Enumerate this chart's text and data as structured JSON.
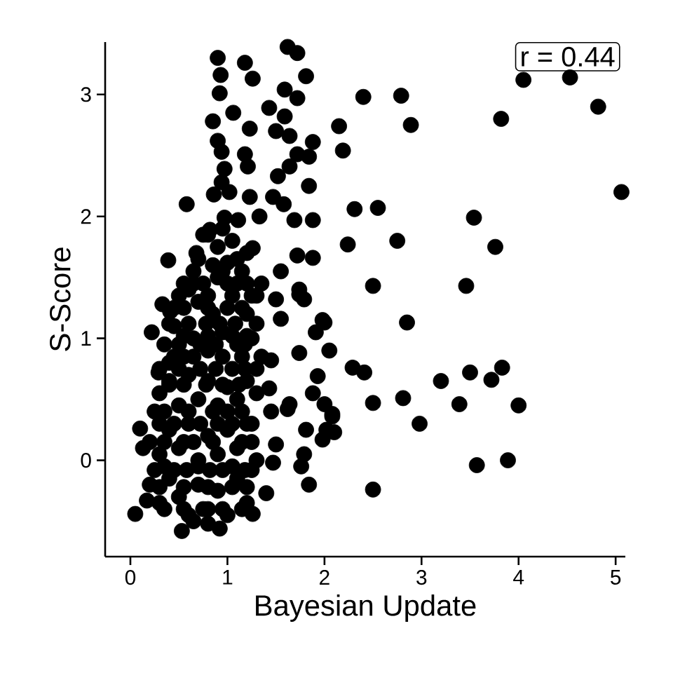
{
  "chart_data": {
    "type": "scatter",
    "xlabel": "Bayesian Update",
    "ylabel": "S-Score",
    "annotations": [
      "r = 0.44"
    ],
    "marker": "circle",
    "color": "#000000",
    "xlim": [
      -0.26,
      5.1
    ],
    "ylim": [
      -0.79,
      3.43
    ],
    "xticks": [
      0,
      1,
      2,
      3,
      4,
      5
    ],
    "yticks": [
      0,
      1,
      2,
      3
    ],
    "x": [
      4.05,
      4.53,
      4.82,
      3.82,
      5.06,
      2.4,
      2.79,
      2.15,
      2.89,
      2.19,
      2.31,
      2.55,
      3.54,
      2.24,
      2.75,
      3.76,
      2.5,
      3.46,
      2.85,
      2.29,
      2.41,
      3.2,
      3.5,
      3.72,
      3.83,
      2.5,
      2.81,
      3.39,
      4.0,
      2.98,
      3.57,
      3.89,
      2.5,
      2.05,
      2.08,
      2.02,
      0.9,
      1.18,
      1.62,
      1.72,
      1.81,
      0.93,
      0.92,
      1.26,
      1.59,
      1.72,
      0.85,
      1.06,
      1.23,
      1.43,
      1.59,
      1.5,
      0.9,
      0.94,
      1.18,
      1.64,
      1.88,
      1.72,
      1.84,
      0.97,
      1.21,
      1.64,
      1.52,
      0.94,
      1.84,
      0.86,
      1.02,
      1.23,
      1.47,
      0.58,
      1.58,
      0.97,
      1.33,
      1.11,
      1.69,
      1.88,
      0.82,
      0.68,
      0.39,
      1.72,
      1.88,
      1.55,
      1.74,
      1.79,
      0.41,
      1.98,
      0.65,
      1.26,
      0.22,
      0.33,
      0.29,
      0.1,
      0.13,
      0.05,
      0.17,
      0.53,
      0.92,
      1.26,
      1.4,
      1.74,
      1.5,
      1.55,
      1.74,
      1.91,
      2.0,
      1.93,
      1.88,
      2.0,
      2.08,
      1.64,
      1.62,
      1.81,
      2.1,
      1.98,
      1.79,
      1.76,
      1.84,
      1.5,
      1.47,
      1.45,
      1.43,
      1.45,
      0.75,
      0.9,
      1.05,
      1.2,
      0.85,
      1.0,
      0.6,
      0.75,
      0.9,
      1.1,
      1.3,
      0.55,
      0.7,
      0.85,
      1.0,
      1.2,
      1.35,
      0.35,
      0.45,
      0.55,
      0.65,
      0.8,
      0.95,
      1.1,
      1.25,
      1.35,
      0.4,
      0.3,
      0.4,
      0.5,
      0.6,
      0.7,
      0.8,
      0.9,
      1.0,
      1.1,
      1.2,
      1.3,
      0.25,
      0.2,
      0.3,
      0.4,
      0.5,
      0.6,
      0.7,
      0.8,
      0.9,
      1.0,
      1.1,
      1.2,
      1.3,
      0.2,
      0.3,
      0.4,
      0.5,
      0.6,
      0.7,
      0.8,
      0.9,
      1.0,
      1.1,
      1.2,
      0.65,
      0.8,
      0.65,
      0.95,
      1.15,
      0.5,
      0.8,
      1.05,
      1.25,
      0.4,
      0.6,
      0.78,
      0.92,
      1.08,
      1.3,
      0.3,
      0.5,
      0.72,
      0.88,
      1.05,
      1.18,
      1.3,
      0.3,
      0.45,
      0.72,
      0.9,
      1.05,
      1.25,
      0.25,
      0.45,
      0.58,
      0.82,
      0.95,
      1.18,
      1.25,
      0.5,
      0.72,
      0.88,
      1.18,
      0.35,
      0.55,
      0.75,
      0.95,
      1.15,
      0.8,
      0.95,
      0.7,
      1.1,
      0.55,
      1.0,
      1.2,
      0.45,
      0.8,
      1.15,
      0.55,
      0.8,
      1.05,
      1.2,
      0.45,
      0.65,
      0.95,
      1.15,
      0.4,
      0.55,
      0.78,
      0.95,
      1.12,
      0.35,
      0.6,
      0.85,
      1.0,
      1.15,
      0.35,
      0.55,
      0.65,
      0.85,
      1.15,
      1.25,
      0.3,
      0.55,
      0.8,
      1.05,
      1.2,
      0.35,
      0.7,
      1.05
    ],
    "values": [
      3.12,
      3.14,
      2.9,
      2.8,
      2.2,
      2.98,
      2.99,
      2.74,
      2.75,
      2.54,
      2.06,
      2.07,
      1.99,
      1.77,
      1.8,
      1.75,
      1.43,
      1.43,
      1.13,
      0.76,
      0.72,
      0.65,
      0.72,
      0.66,
      0.76,
      0.47,
      0.51,
      0.46,
      0.45,
      0.3,
      -0.04,
      0.0,
      -0.24,
      0.9,
      0.38,
      0.25,
      3.3,
      3.26,
      3.39,
      3.34,
      3.15,
      3.16,
      3.01,
      3.13,
      3.04,
      2.97,
      2.78,
      2.85,
      2.72,
      2.89,
      2.82,
      2.7,
      2.62,
      2.53,
      2.51,
      2.66,
      2.61,
      2.51,
      2.49,
      2.39,
      2.41,
      2.41,
      2.33,
      2.28,
      2.25,
      2.18,
      2.2,
      2.16,
      2.16,
      2.1,
      2.1,
      1.99,
      2.0,
      1.97,
      1.97,
      1.97,
      1.89,
      1.7,
      1.64,
      1.68,
      1.66,
      1.55,
      1.4,
      1.32,
      1.22,
      1.15,
      1.45,
      1.74,
      1.05,
      1.28,
      0.72,
      0.26,
      0.1,
      -0.44,
      -0.33,
      -0.58,
      -0.56,
      -0.44,
      -0.27,
      1.36,
      1.32,
      1.16,
      0.88,
      1.05,
      1.13,
      0.69,
      0.55,
      0.46,
      0.36,
      0.46,
      0.42,
      0.25,
      0.23,
      0.17,
      0.05,
      -0.05,
      -0.2,
      0.13,
      -0.02,
      0.82,
      0.59,
      0.4,
      1.85,
      1.75,
      1.8,
      1.7,
      1.6,
      1.62,
      1.4,
      1.45,
      1.5,
      1.45,
      1.35,
      1.25,
      1.3,
      1.2,
      1.25,
      1.2,
      1.45,
      0.95,
      1.1,
      0.85,
      1.0,
      0.9,
      1.05,
      0.95,
      1.0,
      0.85,
      0.8,
      0.55,
      0.65,
      0.45,
      0.7,
      0.5,
      0.65,
      0.45,
      0.6,
      0.5,
      0.65,
      0.55,
      0.4,
      0.15,
      0.05,
      0.25,
      0.1,
      0.3,
      0.0,
      0.2,
      0.05,
      0.25,
      0.1,
      0.3,
      0.0,
      -0.2,
      -0.35,
      -0.15,
      -0.3,
      -0.45,
      -0.2,
      -0.4,
      -0.25,
      -0.45,
      -0.15,
      -0.35,
      -0.5,
      -0.52,
      1.55,
      1.55,
      1.55,
      1.35,
      1.35,
      1.35,
      1.35,
      1.12,
      1.12,
      1.12,
      1.12,
      1.12,
      1.12,
      0.75,
      0.75,
      0.75,
      0.75,
      0.75,
      0.75,
      0.75,
      0.3,
      0.3,
      0.3,
      0.3,
      0.3,
      0.3,
      -0.08,
      -0.08,
      -0.08,
      -0.08,
      -0.08,
      -0.08,
      -0.08,
      0.95,
      0.95,
      0.95,
      0.95,
      -0.4,
      -0.4,
      -0.4,
      -0.4,
      -0.4,
      1.85,
      1.9,
      1.65,
      1.65,
      1.45,
      1.45,
      1.45,
      1.25,
      1.25,
      1.25,
      1.02,
      1.02,
      1.02,
      1.02,
      0.85,
      0.85,
      0.85,
      0.85,
      0.62,
      0.62,
      0.62,
      0.62,
      0.62,
      0.4,
      0.4,
      0.4,
      0.4,
      0.4,
      0.15,
      0.15,
      0.15,
      0.15,
      0.15,
      0.15,
      -0.22,
      -0.22,
      -0.22,
      -0.22,
      -0.22,
      -0.05,
      -0.05,
      -0.05
    ]
  }
}
